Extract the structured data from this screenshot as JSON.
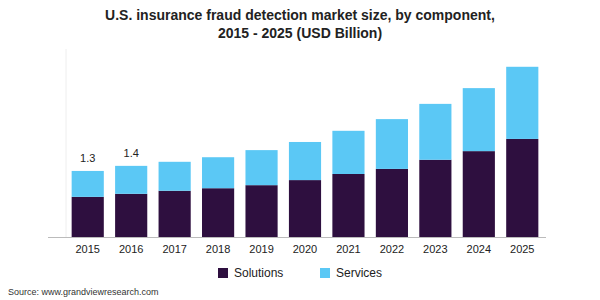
{
  "chart_data": {
    "type": "bar",
    "title": "U.S. insurance fraud detection market size, by component,",
    "subtitle": "2015 - 2025 (USD Billion)",
    "source": "Source: www.grandviewresearch.com",
    "categories": [
      "2015",
      "2016",
      "2017",
      "2018",
      "2019",
      "2020",
      "2021",
      "2022",
      "2023",
      "2024",
      "2025"
    ],
    "series": [
      {
        "name": "Solutions",
        "color": "#2e0f3f",
        "values": [
          0.79,
          0.85,
          0.91,
          0.96,
          1.02,
          1.12,
          1.24,
          1.34,
          1.52,
          1.69,
          1.93
        ]
      },
      {
        "name": "Services",
        "color": "#5bc8f5",
        "values": [
          0.51,
          0.55,
          0.57,
          0.61,
          0.69,
          0.75,
          0.85,
          0.98,
          1.1,
          1.24,
          1.42
        ]
      }
    ],
    "annotations": [
      {
        "category": "2015",
        "value": 1.3,
        "label": "1.3"
      },
      {
        "category": "2016",
        "value": 1.4,
        "label": "1.4"
      }
    ],
    "ylim": [
      0,
      3.7
    ],
    "stacked": true,
    "grid": false,
    "legend": "bottom",
    "tick_labels": "x",
    "data_labels": false
  }
}
